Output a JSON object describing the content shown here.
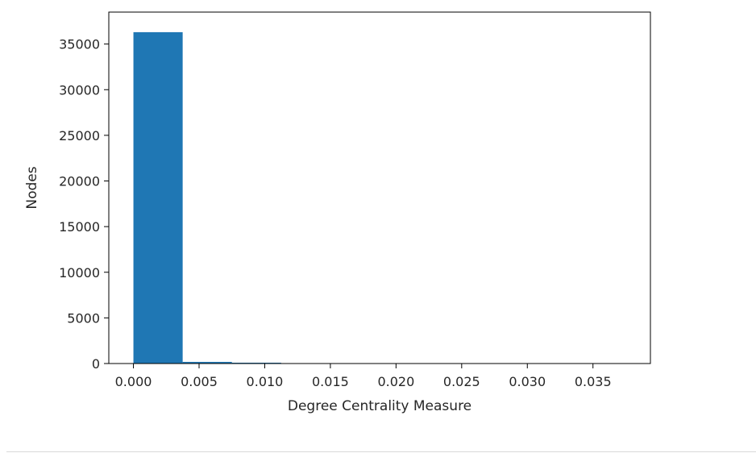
{
  "chart_data": {
    "type": "bar",
    "title": "",
    "xlabel": "Degree Centrality Measure",
    "ylabel": "Nodes",
    "bin_edges": [
      0.0,
      0.00375,
      0.0075,
      0.01125,
      0.015,
      0.01875,
      0.0225,
      0.02625,
      0.03,
      0.03375,
      0.0375
    ],
    "values": [
      36300,
      180,
      90,
      20,
      8,
      5,
      3,
      2,
      1,
      1
    ],
    "xlim": [
      -0.001875,
      0.039375
    ],
    "ylim": [
      0,
      38500
    ],
    "xticks": [
      0.0,
      0.005,
      0.01,
      0.015,
      0.02,
      0.025,
      0.03,
      0.035
    ],
    "xtick_labels": [
      "0.000",
      "0.005",
      "0.010",
      "0.015",
      "0.020",
      "0.025",
      "0.030",
      "0.035"
    ],
    "yticks": [
      0,
      5000,
      10000,
      15000,
      20000,
      25000,
      30000,
      35000
    ],
    "ytick_labels": [
      "0",
      "5000",
      "10000",
      "15000",
      "20000",
      "25000",
      "30000",
      "35000"
    ],
    "bar_color": "#1f77b4",
    "grid": false,
    "legend": "none"
  }
}
